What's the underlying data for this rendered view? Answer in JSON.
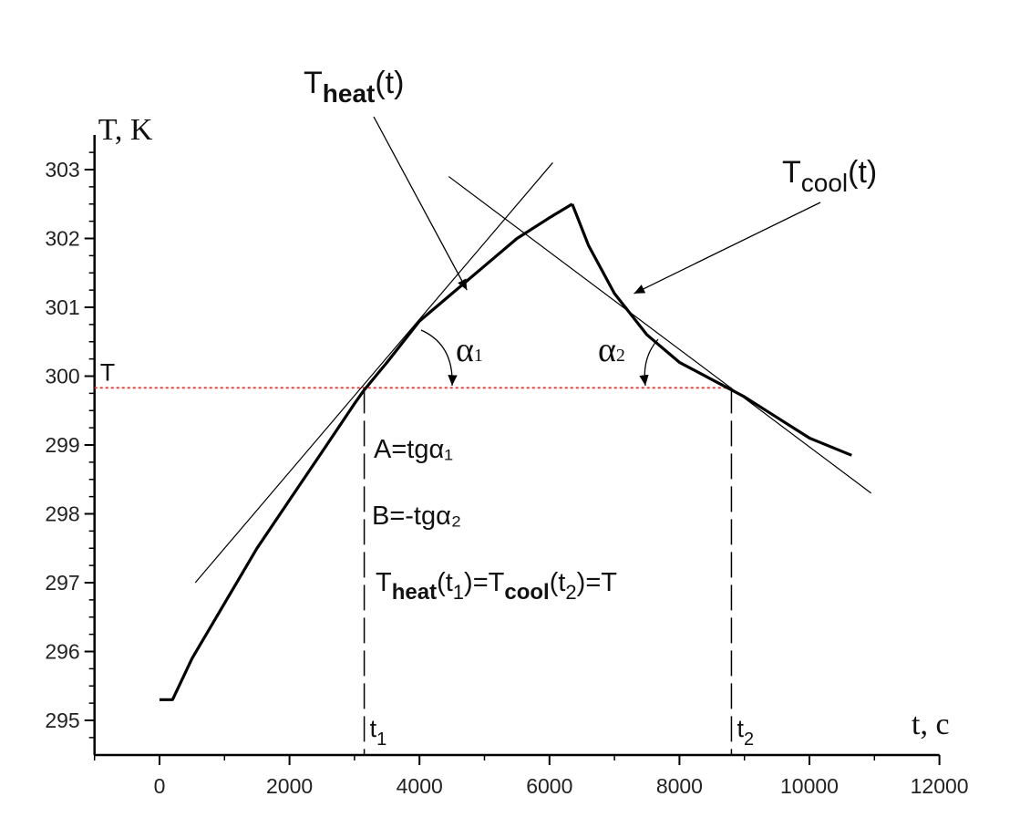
{
  "chart_data": {
    "type": "line",
    "title": "",
    "xlabel": "t, c",
    "ylabel": "T, K",
    "xlim": [
      -1000,
      12000
    ],
    "ylim": [
      294.5,
      303.5
    ],
    "xticks": [
      0,
      2000,
      4000,
      6000,
      8000,
      10000,
      12000
    ],
    "yticks": [
      295,
      296,
      297,
      298,
      299,
      300,
      301,
      302,
      303
    ],
    "xtick_labels": [
      "0",
      "2000",
      "4000",
      "6000",
      "8000",
      "10000",
      "12000"
    ],
    "ytick_labels": [
      "295",
      "296",
      "297",
      "298",
      "299",
      "300",
      "301",
      "302",
      "303"
    ],
    "series": [
      {
        "role": "heating curve",
        "x": [
          0,
          200,
          500,
          1000,
          1500,
          2000,
          2500,
          3000,
          3150,
          3500,
          4000,
          4500,
          5000,
          5500,
          6000,
          6350
        ],
        "y": [
          295.3,
          295.3,
          295.9,
          296.7,
          297.5,
          298.2,
          298.9,
          299.6,
          299.8,
          300.2,
          300.8,
          301.2,
          301.6,
          302.0,
          302.3,
          302.5
        ]
      },
      {
        "role": "cooling curve",
        "x": [
          6350,
          6600,
          7000,
          7500,
          8000,
          8500,
          8800,
          9000,
          9500,
          10000,
          10650
        ],
        "y": [
          302.5,
          301.9,
          301.2,
          300.6,
          300.2,
          299.95,
          299.8,
          299.7,
          299.4,
          299.1,
          298.85
        ]
      }
    ],
    "tangent_lines": [
      {
        "x": [
          550,
          6050
        ],
        "y": [
          297.0,
          303.1
        ]
      },
      {
        "x": [
          4450,
          10950
        ],
        "y": [
          302.9,
          298.3
        ]
      }
    ],
    "reference_line": {
      "label": "T",
      "y": 299.83,
      "style": "dotted",
      "color": "#e53935"
    },
    "markers": [
      {
        "label": "t",
        "subscript": "1",
        "x": 3150
      },
      {
        "label": "t",
        "subscript": "2",
        "x": 8800
      }
    ],
    "annotations": {
      "heat_label": {
        "main": "T",
        "sub": "heat",
        "tail": "(t)",
        "arrow_to": [
          4730,
          301.25
        ]
      },
      "cool_label": {
        "main": "T",
        "sub": "cool",
        "tail": "(t)",
        "arrow_to": [
          7300,
          301.2
        ]
      },
      "alpha1": {
        "main": "α",
        "sub": "1"
      },
      "alpha2": {
        "main": "α",
        "sub": "2"
      },
      "formula_a": "A=tgα₁",
      "formula_b": "B=-tgα₂",
      "formula_c": {
        "p1": "T",
        "s1": "heat",
        "p2": "(t",
        "s2": "1",
        "p3": ")=T",
        "s3": "cool",
        "p4": "(t",
        "s4": "2",
        "p5": ")=T"
      }
    },
    "grid": false,
    "legend": "none",
    "colors": {
      "curve": "#000000",
      "reference": "#e53935",
      "axis": "#000000"
    }
  }
}
